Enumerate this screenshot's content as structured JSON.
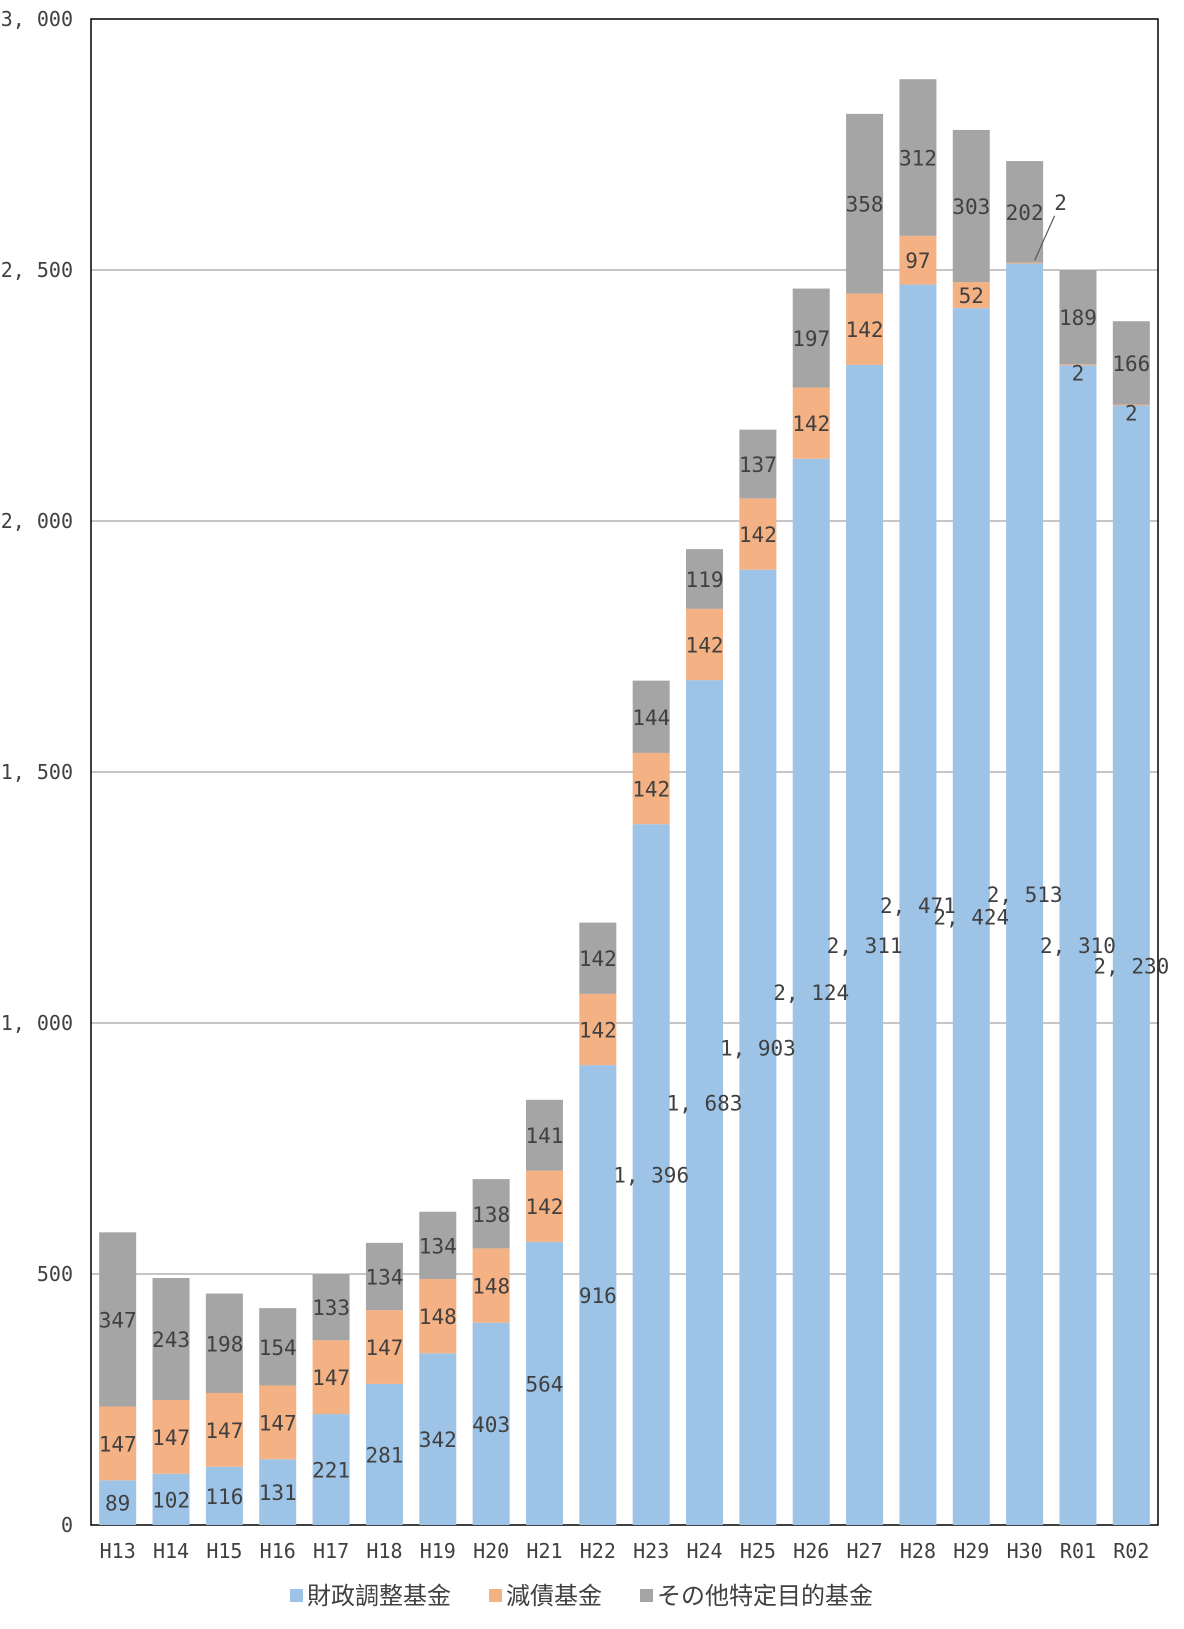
{
  "chart_data": {
    "type": "bar",
    "stacked": true,
    "title": "",
    "xlabel": "",
    "ylabel": "",
    "ylim": [
      0,
      3000
    ],
    "yticks": [
      0,
      500,
      1000,
      1500,
      2000,
      2500,
      3000
    ],
    "ytick_labels": [
      "0",
      "500",
      "1, 000",
      "1, 500",
      "2, 000",
      "2, 500",
      "3, 000"
    ],
    "grid": "horizontal",
    "legend_position": "bottom",
    "categories": [
      "H13",
      "H14",
      "H15",
      "H16",
      "H17",
      "H18",
      "H19",
      "H20",
      "H21",
      "H22",
      "H23",
      "H24",
      "H25",
      "H26",
      "H27",
      "H28",
      "H29",
      "H30",
      "R01",
      "R02"
    ],
    "series": [
      {
        "name": "財政調整基金",
        "color": "#9DC3E6",
        "values": [
          89,
          102,
          116,
          131,
          221,
          281,
          342,
          403,
          564,
          916,
          1396,
          1683,
          1903,
          2124,
          2311,
          2471,
          2424,
          2513,
          2310,
          2230
        ],
        "labels": [
          "89",
          "102",
          "116",
          "131",
          "221",
          "281",
          "342",
          "403",
          "564",
          "916",
          "1, 396",
          "1, 683",
          "1, 903",
          "2, 124",
          "2, 311",
          "2, 471",
          "2, 424",
          "2, 513",
          "2, 310",
          "2, 230"
        ]
      },
      {
        "name": "減債基金",
        "color": "#F4B183",
        "values": [
          147,
          147,
          147,
          147,
          147,
          147,
          148,
          148,
          142,
          142,
          142,
          142,
          142,
          142,
          142,
          97,
          52,
          2,
          2,
          2
        ],
        "labels": [
          "147",
          "147",
          "147",
          "147",
          "147",
          "147",
          "148",
          "148",
          "142",
          "142",
          "142",
          "142",
          "142",
          "142",
          "142",
          "97",
          "52",
          "2",
          "2",
          "2"
        ]
      },
      {
        "name": "その他特定目的基金",
        "color": "#A5A5A5",
        "values": [
          347,
          243,
          198,
          154,
          133,
          134,
          134,
          138,
          141,
          142,
          144,
          119,
          137,
          197,
          358,
          312,
          303,
          202,
          189,
          166
        ],
        "labels": [
          "347",
          "243",
          "198",
          "154",
          "133",
          "134",
          "134",
          "138",
          "141",
          "142",
          "144",
          "119",
          "137",
          "197",
          "358",
          "312",
          "303",
          "202",
          "189",
          "166"
        ]
      }
    ]
  }
}
